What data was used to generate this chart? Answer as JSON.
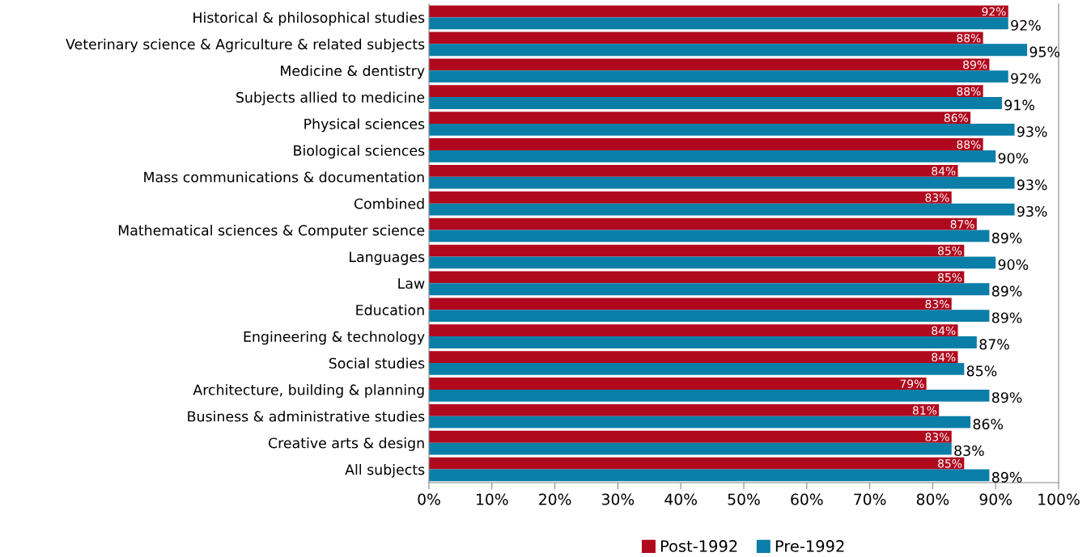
{
  "chart_data": {
    "type": "bar",
    "orientation": "horizontal",
    "categories": [
      "Historical & philosophical studies",
      "Veterinary science & Agriculture & related subjects",
      "Medicine & dentistry",
      "Subjects allied to medicine",
      "Physical sciences",
      "Biological sciences",
      "Mass communications & documentation",
      "Combined",
      "Mathematical sciences & Computer science",
      "Languages",
      "Law",
      "Education",
      "Engineering & technology",
      "Social studies",
      "Architecture, building & planning",
      "Business & administrative studies",
      "Creative arts & design",
      "All subjects"
    ],
    "series": [
      {
        "name": "Post-1992",
        "color": "#b0091e",
        "values": [
          92,
          88,
          89,
          88,
          86,
          88,
          84,
          83,
          87,
          85,
          85,
          83,
          84,
          84,
          79,
          81,
          83,
          85
        ],
        "value_labels": [
          "92%",
          "88%",
          "89%",
          "88%",
          "86%",
          "88%",
          "84%",
          "83%",
          "87%",
          "85%",
          "85%",
          "83%",
          "84%",
          "84%",
          "79%",
          "81%",
          "83%",
          "85%"
        ]
      },
      {
        "name": "Pre-1992",
        "color": "#0b7ea8",
        "values": [
          92,
          95,
          92,
          91,
          93,
          90,
          93,
          93,
          89,
          90,
          89,
          89,
          87,
          85,
          89,
          86,
          83,
          89
        ],
        "value_labels": [
          "92%",
          "95%",
          "92%",
          "91%",
          "93%",
          "90%",
          "93%",
          "93%",
          "89%",
          "90%",
          "89%",
          "89%",
          "87%",
          "85%",
          "89%",
          "86%",
          "83%",
          "89%"
        ]
      }
    ],
    "xlim": [
      0,
      100
    ],
    "xticks": [
      {
        "value": 0,
        "label": "0%"
      },
      {
        "value": 10,
        "label": "10%"
      },
      {
        "value": 20,
        "label": "20%"
      },
      {
        "value": 30,
        "label": "30%"
      },
      {
        "value": 40,
        "label": "40%"
      },
      {
        "value": 50,
        "label": "50%"
      },
      {
        "value": 60,
        "label": "60%"
      },
      {
        "value": 70,
        "label": "70%"
      },
      {
        "value": 80,
        "label": "80%"
      },
      {
        "value": 90,
        "label": "90%"
      },
      {
        "value": 100,
        "label": "100%"
      }
    ],
    "grid": false,
    "legend": "bottom"
  }
}
